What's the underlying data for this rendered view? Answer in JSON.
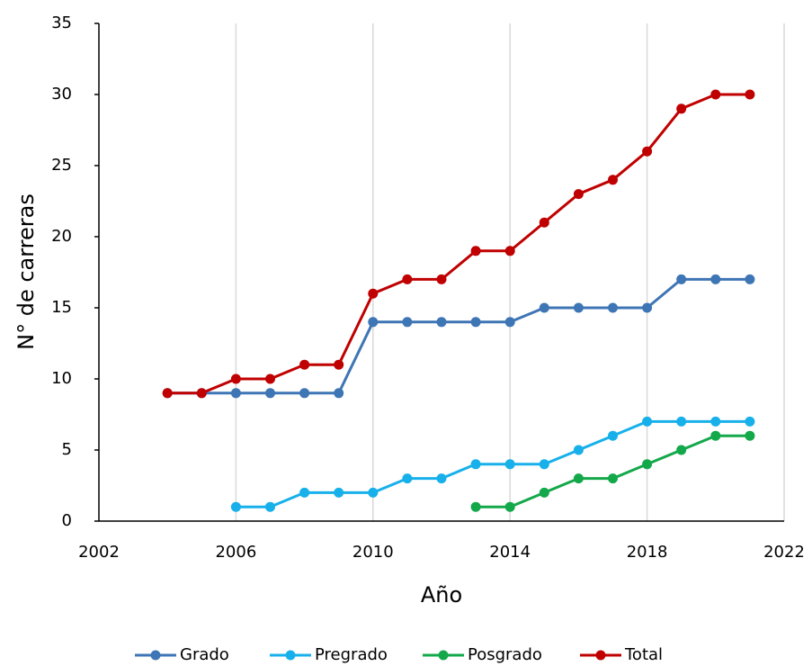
{
  "chart_data": {
    "type": "line",
    "x_label": "Año",
    "y_label": "N° de carreras",
    "x": [
      2004,
      2005,
      2006,
      2007,
      2008,
      2009,
      2010,
      2011,
      2012,
      2013,
      2014,
      2015,
      2016,
      2017,
      2018,
      2019,
      2020,
      2021
    ],
    "series": [
      {
        "name": "Grado",
        "color": "#3e75b5",
        "values": [
          9,
          9,
          9,
          9,
          9,
          9,
          14,
          14,
          14,
          14,
          14,
          15,
          15,
          15,
          15,
          17,
          17,
          17
        ]
      },
      {
        "name": "Pregrado",
        "color": "#17b0ea",
        "values": [
          null,
          null,
          1,
          1,
          2,
          2,
          2,
          3,
          3,
          4,
          4,
          4,
          5,
          6,
          7,
          7,
          7,
          7
        ]
      },
      {
        "name": "Posgrado",
        "color": "#13a84a",
        "values": [
          null,
          null,
          null,
          null,
          null,
          null,
          null,
          null,
          null,
          1,
          1,
          2,
          3,
          3,
          4,
          5,
          6,
          6
        ]
      },
      {
        "name": "Total",
        "color": "#c00000",
        "values": [
          9,
          9,
          10,
          10,
          11,
          11,
          16,
          17,
          17,
          19,
          19,
          21,
          23,
          24,
          26,
          29,
          30,
          30
        ]
      }
    ],
    "xlim": [
      2002,
      2022
    ],
    "xticks": [
      2002,
      2006,
      2010,
      2014,
      2018,
      2022
    ],
    "ylim": [
      0,
      35
    ],
    "yticks": [
      0,
      5,
      10,
      15,
      20,
      25,
      30,
      35
    ],
    "grid": "x",
    "legend": "bottom"
  }
}
